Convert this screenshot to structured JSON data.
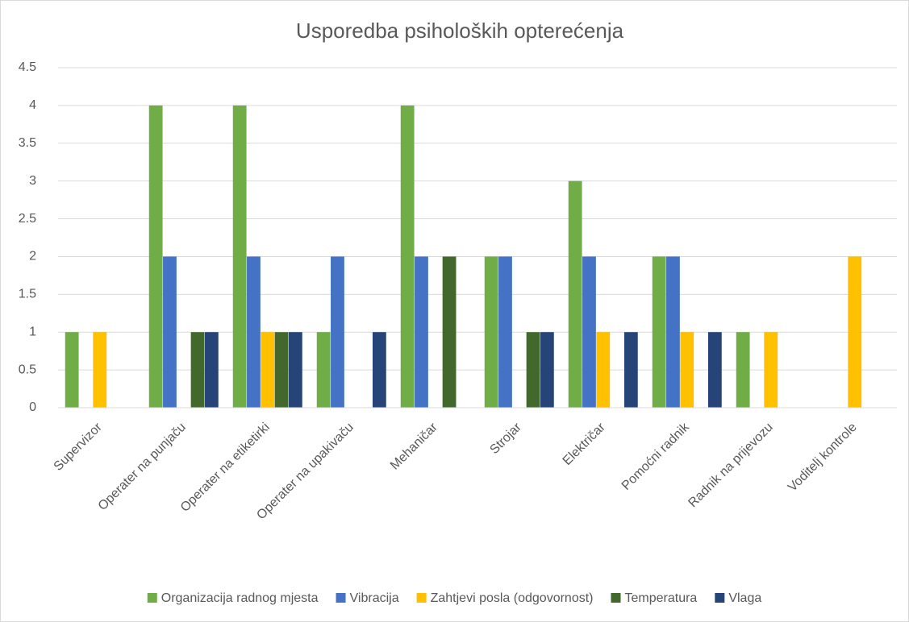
{
  "chart_data": {
    "type": "bar",
    "title": "Usporedba psiholoških opterećenja",
    "categories": [
      "Supervizor",
      "Operater na punjaču",
      "Operater na etiketirki",
      "Operater na upakivaču",
      "Mehaničar",
      "Strojar",
      "Električar",
      "Pomoćni radnik",
      "Radnik na prijevozu",
      "Voditelj kontrole"
    ],
    "series": [
      {
        "name": "Organizacija radnog mjesta",
        "color": "#70ad47",
        "values": [
          1,
          4,
          4,
          1,
          4,
          2,
          3,
          2,
          1,
          0
        ]
      },
      {
        "name": "Vibracija",
        "color": "#4472c4",
        "values": [
          0,
          2,
          2,
          2,
          2,
          2,
          2,
          2,
          0,
          0
        ]
      },
      {
        "name": "Zahtjevi posla (odgovornost)",
        "color": "#ffc000",
        "values": [
          1,
          0,
          1,
          0,
          0,
          0,
          1,
          1,
          1,
          2
        ]
      },
      {
        "name": "Temperatura",
        "color": "#43682b",
        "values": [
          0,
          1,
          1,
          0,
          2,
          1,
          0,
          0,
          0,
          0
        ]
      },
      {
        "name": "Vlaga",
        "color": "#264478",
        "values": [
          0,
          1,
          1,
          1,
          0,
          1,
          1,
          1,
          0,
          0
        ]
      }
    ],
    "ylim": [
      0,
      4.5
    ],
    "yticks": [
      0,
      0.5,
      1,
      1.5,
      2,
      2.5,
      3,
      3.5,
      4,
      4.5
    ],
    "grid": true,
    "legend": "bottom"
  }
}
